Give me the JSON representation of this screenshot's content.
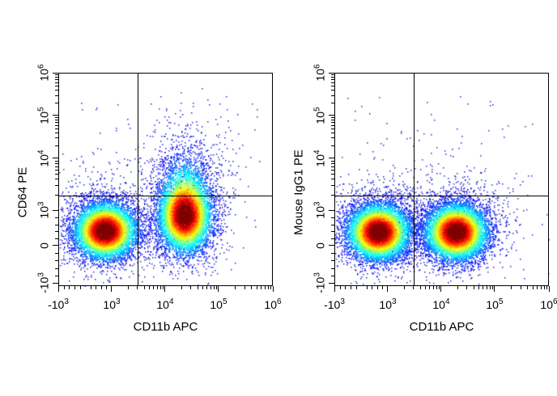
{
  "chart_data": [
    {
      "type": "scatter",
      "subtype": "flow-cytometry-density-plot",
      "xlabel": "CD11b APC",
      "ylabel": "CD64 PE",
      "x_scale": "logicle",
      "y_scale": "logicle",
      "xlim": [
        -1000,
        1000000
      ],
      "ylim": [
        -1000,
        1000000
      ],
      "x_ticks": [
        {
          "value": -1000,
          "base": "-10",
          "exp": "3"
        },
        {
          "value": 1000,
          "base": "10",
          "exp": "3"
        },
        {
          "value": 10000,
          "base": "10",
          "exp": "4"
        },
        {
          "value": 100000,
          "base": "10",
          "exp": "5"
        },
        {
          "value": 1000000,
          "base": "10",
          "exp": "6"
        }
      ],
      "y_ticks": [
        {
          "value": -1000,
          "base": "-10",
          "exp": "3"
        },
        {
          "value": 0,
          "base": "0",
          "exp": ""
        },
        {
          "value": 1000,
          "base": "10",
          "exp": "3"
        },
        {
          "value": 10000,
          "base": "10",
          "exp": "4"
        },
        {
          "value": 100000,
          "base": "10",
          "exp": "5"
        },
        {
          "value": 1000000,
          "base": "10",
          "exp": "6"
        }
      ],
      "quadrant_gate": {
        "x": 3000,
        "y": 2000
      },
      "colormap": "jet",
      "populations": [
        {
          "x_center": 700,
          "y_center": 450,
          "orientation": "round"
        },
        {
          "x_center": 22000,
          "y_center": 900,
          "orientation": "elongated-vertical",
          "y_extent_high": 10000
        }
      ]
    },
    {
      "type": "scatter",
      "subtype": "flow-cytometry-density-plot",
      "xlabel": "CD11b APC",
      "ylabel": "Mouse IgG1 PE",
      "x_scale": "logicle",
      "y_scale": "logicle",
      "xlim": [
        -1000,
        1000000
      ],
      "ylim": [
        -1000,
        1000000
      ],
      "x_ticks": [
        {
          "value": -1000,
          "base": "-10",
          "exp": "3"
        },
        {
          "value": 1000,
          "base": "10",
          "exp": "3"
        },
        {
          "value": 10000,
          "base": "10",
          "exp": "4"
        },
        {
          "value": 100000,
          "base": "10",
          "exp": "5"
        },
        {
          "value": 1000000,
          "base": "10",
          "exp": "6"
        }
      ],
      "y_ticks": [
        {
          "value": -1000,
          "base": "-10",
          "exp": "3"
        },
        {
          "value": 0,
          "base": "0",
          "exp": ""
        },
        {
          "value": 1000,
          "base": "10",
          "exp": "3"
        },
        {
          "value": 10000,
          "base": "10",
          "exp": "4"
        },
        {
          "value": 100000,
          "base": "10",
          "exp": "5"
        },
        {
          "value": 1000000,
          "base": "10",
          "exp": "6"
        }
      ],
      "quadrant_gate": {
        "x": 3000,
        "y": 2000
      },
      "colormap": "jet",
      "populations": [
        {
          "x_center": 600,
          "y_center": 420,
          "orientation": "round"
        },
        {
          "x_center": 18000,
          "y_center": 420,
          "orientation": "round"
        }
      ]
    }
  ]
}
